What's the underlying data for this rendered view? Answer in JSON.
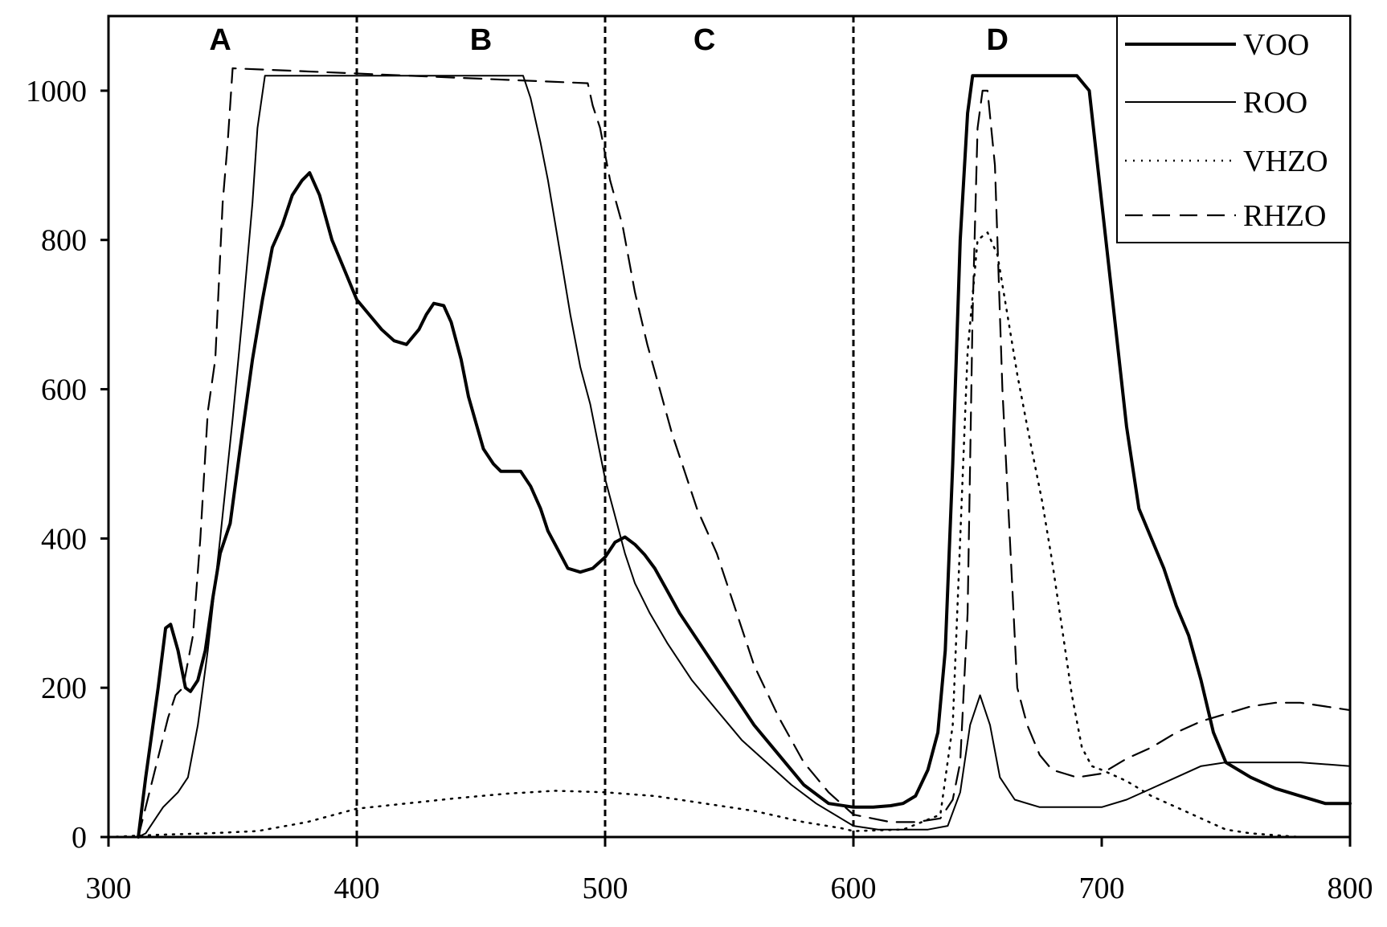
{
  "chart_data": {
    "type": "line",
    "title": "",
    "xlabel": "",
    "ylabel": "",
    "xlim": [
      300,
      800
    ],
    "ylim": [
      0,
      1100
    ],
    "x_ticks": [
      300,
      400,
      500,
      600,
      700,
      800
    ],
    "y_ticks": [
      0,
      200,
      400,
      600,
      800,
      1000
    ],
    "grid": false,
    "legend_position": "top-right",
    "regions": [
      {
        "label": "A",
        "x": 345
      },
      {
        "label": "B",
        "x": 450
      },
      {
        "label": "C",
        "x": 540
      },
      {
        "label": "D",
        "x": 658
      }
    ],
    "region_dividers": [
      400,
      500,
      600
    ],
    "series": [
      {
        "name": "VOO",
        "style": "thick-solid",
        "points": [
          [
            312,
            0
          ],
          [
            315,
            80
          ],
          [
            320,
            200
          ],
          [
            323,
            280
          ],
          [
            325,
            285
          ],
          [
            328,
            250
          ],
          [
            331,
            200
          ],
          [
            333,
            195
          ],
          [
            336,
            210
          ],
          [
            339,
            250
          ],
          [
            342,
            320
          ],
          [
            345,
            380
          ],
          [
            349,
            420
          ],
          [
            353,
            520
          ],
          [
            358,
            640
          ],
          [
            362,
            720
          ],
          [
            366,
            790
          ],
          [
            370,
            820
          ],
          [
            374,
            860
          ],
          [
            378,
            880
          ],
          [
            381,
            890
          ],
          [
            385,
            860
          ],
          [
            390,
            800
          ],
          [
            395,
            760
          ],
          [
            400,
            720
          ],
          [
            405,
            700
          ],
          [
            410,
            680
          ],
          [
            415,
            665
          ],
          [
            420,
            660
          ],
          [
            425,
            680
          ],
          [
            428,
            700
          ],
          [
            431,
            715
          ],
          [
            435,
            712
          ],
          [
            438,
            690
          ],
          [
            442,
            640
          ],
          [
            445,
            590
          ],
          [
            448,
            555
          ],
          [
            451,
            520
          ],
          [
            455,
            500
          ],
          [
            458,
            490
          ],
          [
            462,
            490
          ],
          [
            466,
            490
          ],
          [
            470,
            470
          ],
          [
            474,
            440
          ],
          [
            477,
            410
          ],
          [
            481,
            385
          ],
          [
            485,
            360
          ],
          [
            490,
            355
          ],
          [
            495,
            360
          ],
          [
            500,
            375
          ],
          [
            504,
            395
          ],
          [
            508,
            402
          ],
          [
            512,
            392
          ],
          [
            516,
            378
          ],
          [
            520,
            360
          ],
          [
            525,
            330
          ],
          [
            530,
            300
          ],
          [
            540,
            250
          ],
          [
            550,
            200
          ],
          [
            560,
            150
          ],
          [
            570,
            110
          ],
          [
            580,
            70
          ],
          [
            590,
            45
          ],
          [
            600,
            40
          ],
          [
            608,
            40
          ],
          [
            615,
            42
          ],
          [
            620,
            45
          ],
          [
            625,
            55
          ],
          [
            630,
            90
          ],
          [
            634,
            140
          ],
          [
            637,
            250
          ],
          [
            640,
            500
          ],
          [
            643,
            800
          ],
          [
            646,
            970
          ],
          [
            648,
            1020
          ],
          [
            660,
            1020
          ],
          [
            690,
            1020
          ],
          [
            695,
            1000
          ],
          [
            700,
            850
          ],
          [
            705,
            700
          ],
          [
            710,
            550
          ],
          [
            715,
            440
          ],
          [
            720,
            400
          ],
          [
            725,
            360
          ],
          [
            730,
            310
          ],
          [
            735,
            270
          ],
          [
            740,
            210
          ],
          [
            745,
            140
          ],
          [
            750,
            100
          ],
          [
            760,
            80
          ],
          [
            770,
            65
          ],
          [
            780,
            55
          ],
          [
            790,
            45
          ],
          [
            800,
            45
          ]
        ]
      },
      {
        "name": "ROO",
        "style": "thin-solid",
        "points": [
          [
            312,
            0
          ],
          [
            315,
            5
          ],
          [
            318,
            20
          ],
          [
            322,
            40
          ],
          [
            328,
            60
          ],
          [
            332,
            80
          ],
          [
            336,
            150
          ],
          [
            340,
            250
          ],
          [
            345,
            400
          ],
          [
            350,
            560
          ],
          [
            354,
            700
          ],
          [
            358,
            850
          ],
          [
            360,
            950
          ],
          [
            363,
            1020
          ],
          [
            400,
            1020
          ],
          [
            467,
            1020
          ],
          [
            470,
            990
          ],
          [
            474,
            930
          ],
          [
            477,
            880
          ],
          [
            480,
            820
          ],
          [
            483,
            760
          ],
          [
            486,
            700
          ],
          [
            490,
            630
          ],
          [
            494,
            580
          ],
          [
            497,
            530
          ],
          [
            500,
            480
          ],
          [
            504,
            430
          ],
          [
            508,
            380
          ],
          [
            512,
            340
          ],
          [
            518,
            300
          ],
          [
            525,
            260
          ],
          [
            535,
            210
          ],
          [
            545,
            170
          ],
          [
            555,
            130
          ],
          [
            565,
            100
          ],
          [
            575,
            70
          ],
          [
            585,
            45
          ],
          [
            595,
            25
          ],
          [
            600,
            15
          ],
          [
            610,
            10
          ],
          [
            620,
            10
          ],
          [
            630,
            10
          ],
          [
            638,
            15
          ],
          [
            643,
            60
          ],
          [
            647,
            150
          ],
          [
            651,
            190
          ],
          [
            655,
            150
          ],
          [
            659,
            80
          ],
          [
            665,
            50
          ],
          [
            675,
            40
          ],
          [
            690,
            40
          ],
          [
            700,
            40
          ],
          [
            710,
            50
          ],
          [
            720,
            65
          ],
          [
            730,
            80
          ],
          [
            740,
            95
          ],
          [
            750,
            100
          ],
          [
            760,
            100
          ],
          [
            780,
            100
          ],
          [
            800,
            95
          ]
        ]
      },
      {
        "name": "VHZO",
        "style": "dotted",
        "points": [
          [
            300,
            0
          ],
          [
            320,
            3
          ],
          [
            340,
            5
          ],
          [
            360,
            8
          ],
          [
            380,
            20
          ],
          [
            400,
            38
          ],
          [
            420,
            45
          ],
          [
            440,
            52
          ],
          [
            460,
            58
          ],
          [
            480,
            62
          ],
          [
            500,
            60
          ],
          [
            520,
            55
          ],
          [
            540,
            45
          ],
          [
            560,
            35
          ],
          [
            580,
            20
          ],
          [
            595,
            12
          ],
          [
            600,
            8
          ],
          [
            620,
            10
          ],
          [
            635,
            30
          ],
          [
            640,
            150
          ],
          [
            643,
            400
          ],
          [
            646,
            650
          ],
          [
            650,
            800
          ],
          [
            654,
            810
          ],
          [
            658,
            780
          ],
          [
            662,
            700
          ],
          [
            666,
            620
          ],
          [
            670,
            550
          ],
          [
            676,
            450
          ],
          [
            680,
            370
          ],
          [
            684,
            280
          ],
          [
            688,
            190
          ],
          [
            692,
            120
          ],
          [
            696,
            95
          ],
          [
            700,
            90
          ],
          [
            710,
            75
          ],
          [
            720,
            55
          ],
          [
            730,
            40
          ],
          [
            740,
            25
          ],
          [
            750,
            10
          ],
          [
            760,
            5
          ],
          [
            780,
            0
          ],
          [
            800,
            0
          ]
        ]
      },
      {
        "name": "RHZO",
        "style": "dashed",
        "points": [
          [
            312,
            0
          ],
          [
            315,
            40
          ],
          [
            318,
            80
          ],
          [
            321,
            120
          ],
          [
            324,
            160
          ],
          [
            327,
            190
          ],
          [
            330,
            200
          ],
          [
            334,
            270
          ],
          [
            337,
            400
          ],
          [
            340,
            570
          ],
          [
            343,
            640
          ],
          [
            346,
            850
          ],
          [
            348,
            930
          ],
          [
            350,
            1030
          ],
          [
            493,
            1010
          ],
          [
            495,
            980
          ],
          [
            498,
            950
          ],
          [
            502,
            880
          ],
          [
            507,
            820
          ],
          [
            512,
            730
          ],
          [
            517,
            660
          ],
          [
            522,
            600
          ],
          [
            527,
            540
          ],
          [
            532,
            490
          ],
          [
            537,
            440
          ],
          [
            545,
            380
          ],
          [
            552,
            310
          ],
          [
            560,
            230
          ],
          [
            570,
            160
          ],
          [
            580,
            100
          ],
          [
            590,
            60
          ],
          [
            600,
            30
          ],
          [
            615,
            20
          ],
          [
            625,
            20
          ],
          [
            635,
            25
          ],
          [
            640,
            50
          ],
          [
            643,
            100
          ],
          [
            646,
            300
          ],
          [
            648,
            700
          ],
          [
            650,
            950
          ],
          [
            652,
            1000
          ],
          [
            654,
            1000
          ],
          [
            657,
            900
          ],
          [
            660,
            600
          ],
          [
            663,
            400
          ],
          [
            666,
            200
          ],
          [
            670,
            150
          ],
          [
            675,
            110
          ],
          [
            680,
            90
          ],
          [
            685,
            85
          ],
          [
            690,
            80
          ],
          [
            700,
            85
          ],
          [
            710,
            105
          ],
          [
            720,
            120
          ],
          [
            730,
            140
          ],
          [
            740,
            155
          ],
          [
            750,
            165
          ],
          [
            760,
            175
          ],
          [
            770,
            180
          ],
          [
            780,
            180
          ],
          [
            790,
            175
          ],
          [
            800,
            170
          ]
        ]
      }
    ]
  }
}
